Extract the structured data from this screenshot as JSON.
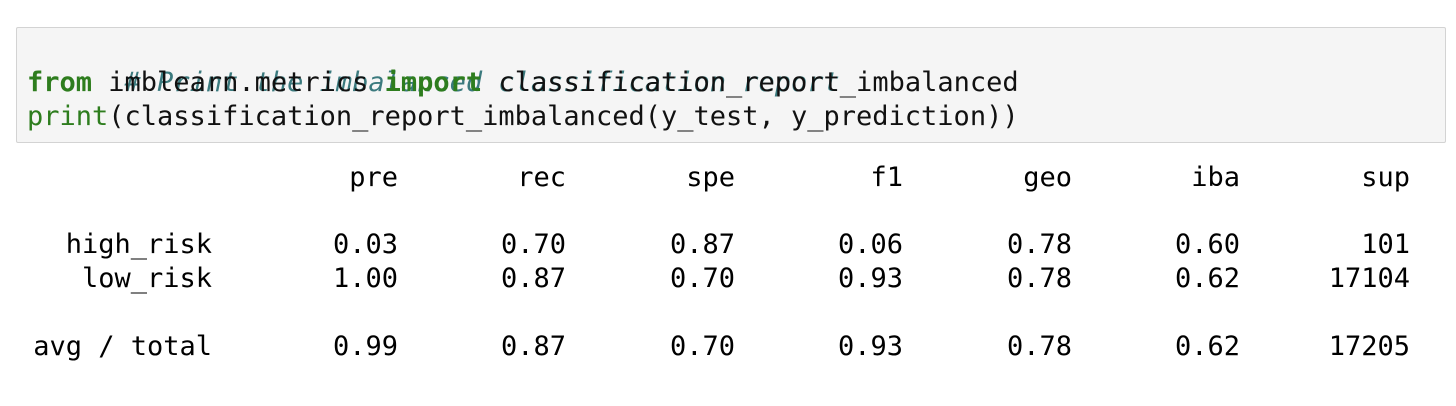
{
  "code": {
    "comment": "# Print the imbalanced classification report",
    "line2_kw_from": "from",
    "line2_module": " imblearn.metrics ",
    "line2_kw_import": "import",
    "line2_name": " classification_report_imbalanced",
    "line3_builtin": "print",
    "line3_rest": "(classification_report_imbalanced(y_test, y_prediction))"
  },
  "report": {
    "headers": [
      "pre",
      "rec",
      "spe",
      "f1",
      "geo",
      "iba",
      "sup"
    ],
    "rows": [
      {
        "label": "high_risk",
        "values": [
          "0.03",
          "0.70",
          "0.87",
          "0.06",
          "0.78",
          "0.60",
          "101"
        ]
      },
      {
        "label": "low_risk",
        "values": [
          "1.00",
          "0.87",
          "0.70",
          "0.93",
          "0.78",
          "0.62",
          "17104"
        ]
      }
    ],
    "total": {
      "label": "avg / total",
      "values": [
        "0.99",
        "0.87",
        "0.70",
        "0.93",
        "0.78",
        "0.62",
        "17205"
      ]
    }
  }
}
